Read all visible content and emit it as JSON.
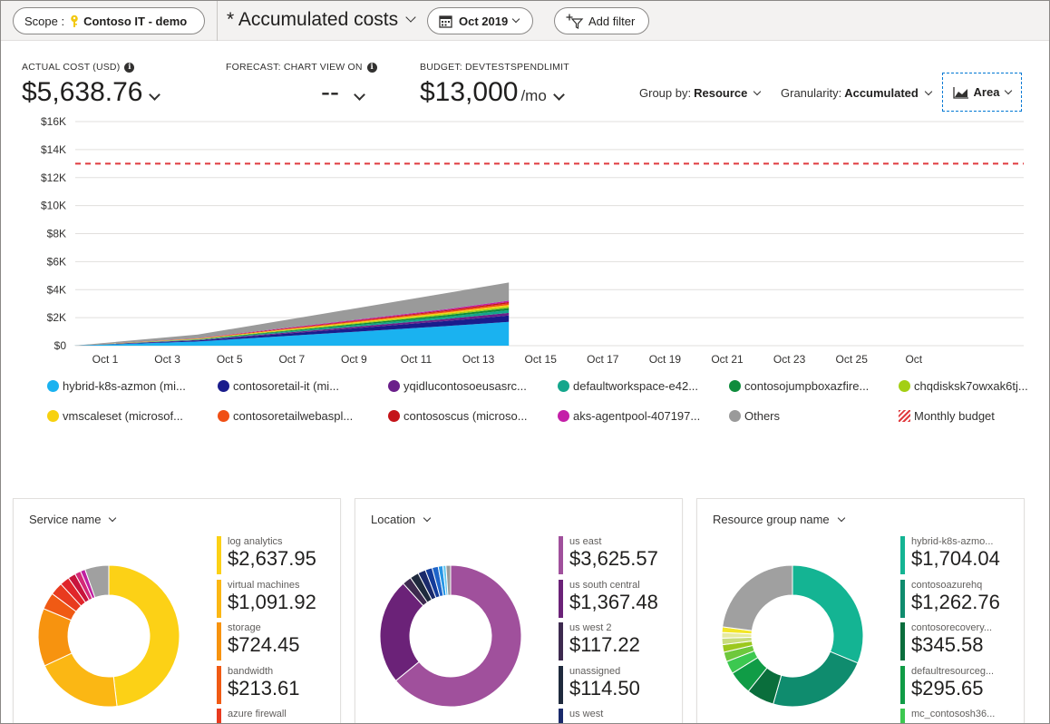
{
  "toolbar": {
    "scope_label": "Scope :",
    "scope_name": "Contoso IT - demo",
    "view_name": "* Accumulated costs",
    "date_range": "Oct 2019",
    "add_filter": "Add filter"
  },
  "kpis": {
    "actual": {
      "label": "ACTUAL COST (USD)",
      "value": "$5,638.76"
    },
    "forecast": {
      "label": "FORECAST: CHART VIEW ON",
      "value": "--"
    },
    "budget": {
      "label": "BUDGET: DEVTESTSPENDLIMIT",
      "value": "$13,000",
      "unit": "/mo"
    }
  },
  "controls": {
    "group_by_label": "Group by:",
    "group_by_value": "Resource",
    "granularity_label": "Granularity:",
    "granularity_value": "Accumulated",
    "chart_type": "Area",
    "icons": {
      "chart_type": "area-chart-icon",
      "scope": "key-icon",
      "date": "calendar-icon",
      "filter": "add-filter-icon"
    }
  },
  "chart_data": {
    "type": "area",
    "stacked": true,
    "y_ticks": [
      "$0",
      "$2K",
      "$4K",
      "$6K",
      "$8K",
      "$10K",
      "$12K",
      "$14K",
      "$16K"
    ],
    "x_ticks": [
      "Oct 1",
      "Oct 3",
      "Oct 5",
      "Oct 7",
      "Oct 9",
      "Oct 11",
      "Oct 13",
      "Oct 15",
      "Oct 17",
      "Oct 19",
      "Oct 21",
      "Oct 23",
      "Oct 25",
      "Oct"
    ],
    "ylim": [
      0,
      16000
    ],
    "x_days": [
      0,
      4,
      8,
      12,
      14
    ],
    "budget": 13000,
    "budget_color": "#e03a3e",
    "grid": true,
    "series": [
      {
        "name": "hybrid-k8s-azmon (mi...",
        "color": "#1ab2f0",
        "values": [
          0,
          300,
          850,
          1400,
          1700
        ]
      },
      {
        "name": "contosoretail-it (mi...",
        "color": "#1a1c8c",
        "values": [
          0,
          70,
          210,
          360,
          450
        ]
      },
      {
        "name": "yqidlucontosoeusasrc...",
        "color": "#6a1f8a",
        "values": [
          0,
          30,
          90,
          150,
          190
        ]
      },
      {
        "name": "defaultworkspace-e42...",
        "color": "#14a68c",
        "values": [
          0,
          30,
          90,
          150,
          190
        ]
      },
      {
        "name": "contosojumpboxazfire...",
        "color": "#0f8c3c",
        "values": [
          0,
          25,
          75,
          130,
          160
        ]
      },
      {
        "name": "chqdisksk7owxak6tj...",
        "color": "#a3cf14",
        "values": [
          0,
          18,
          55,
          90,
          110
        ]
      },
      {
        "name": "vmscaleset (microsof...",
        "color": "#f7d10f",
        "values": [
          0,
          18,
          55,
          90,
          110
        ]
      },
      {
        "name": "contosoretailwebaspl...",
        "color": "#f04f14",
        "values": [
          0,
          18,
          55,
          90,
          110
        ]
      },
      {
        "name": "contososcus (microso...",
        "color": "#c41419",
        "values": [
          0,
          15,
          45,
          75,
          95
        ]
      },
      {
        "name": "aks-agentpool-407197...",
        "color": "#c41fa8",
        "values": [
          0,
          15,
          45,
          75,
          95
        ]
      },
      {
        "name": "Others",
        "color": "#9a9a9a",
        "values": [
          0,
          250,
          700,
          1150,
          1300
        ]
      }
    ],
    "budget_legend": "Monthly budget"
  },
  "cards": [
    {
      "title": "Service name",
      "slices": [
        {
          "value": 2637.95,
          "color": "#fcd116"
        },
        {
          "value": 1091.92,
          "color": "#fbb714"
        },
        {
          "value": 724.45,
          "color": "#f7930f"
        },
        {
          "value": 213.61,
          "color": "#f05a14"
        },
        {
          "value": 160,
          "color": "#e83a1f"
        },
        {
          "value": 120,
          "color": "#e0252a"
        },
        {
          "value": 95,
          "color": "#c8143c"
        },
        {
          "value": 75,
          "color": "#d42877"
        },
        {
          "value": 60,
          "color": "#c01fa0"
        },
        {
          "value": 300,
          "color": "#a0a0a0"
        }
      ],
      "items": [
        {
          "label": "log analytics",
          "value": "$2,637.95",
          "color": "#fcd116"
        },
        {
          "label": "virtual machines",
          "value": "$1,091.92",
          "color": "#fbb714"
        },
        {
          "label": "storage",
          "value": "$724.45",
          "color": "#f7930f"
        },
        {
          "label": "bandwidth",
          "value": "$213.61",
          "color": "#f05a14"
        },
        {
          "label": "azure firewall",
          "value": "",
          "color": "#e83a1f"
        }
      ]
    },
    {
      "title": "Location",
      "slices": [
        {
          "value": 3625.57,
          "color": "#a0509c"
        },
        {
          "value": 1367.48,
          "color": "#6b2278"
        },
        {
          "value": 117.22,
          "color": "#3d2a4f"
        },
        {
          "value": 114.5,
          "color": "#1f2a3d"
        },
        {
          "value": 100,
          "color": "#1a2a6b"
        },
        {
          "value": 90,
          "color": "#143c9a"
        },
        {
          "value": 80,
          "color": "#1e64c8"
        },
        {
          "value": 60,
          "color": "#2896e6"
        },
        {
          "value": 40,
          "color": "#64c8f0"
        },
        {
          "value": 60,
          "color": "#9a9a9a"
        }
      ],
      "items": [
        {
          "label": "us east",
          "value": "$3,625.57",
          "color": "#a0509c"
        },
        {
          "label": "us south central",
          "value": "$1,367.48",
          "color": "#6b2278"
        },
        {
          "label": "us west 2",
          "value": "$117.22",
          "color": "#3d2a4f"
        },
        {
          "label": "unassigned",
          "value": "$114.50",
          "color": "#1f2a3d"
        },
        {
          "label": "us west",
          "value": "",
          "color": "#1a2a6b"
        }
      ]
    },
    {
      "title": "Resource group name",
      "slices": [
        {
          "value": 1704.04,
          "color": "#14b493"
        },
        {
          "value": 1262.76,
          "color": "#0f8c6e"
        },
        {
          "value": 345.58,
          "color": "#0a6e3c"
        },
        {
          "value": 295.65,
          "color": "#109c46"
        },
        {
          "value": 160,
          "color": "#3cc850"
        },
        {
          "value": 120,
          "color": "#6ec83c"
        },
        {
          "value": 95,
          "color": "#9cc81e"
        },
        {
          "value": 80,
          "color": "#c8dc7d"
        },
        {
          "value": 70,
          "color": "#e6eaa0"
        },
        {
          "value": 70,
          "color": "#f2e628"
        },
        {
          "value": 1250,
          "color": "#a0a0a0"
        }
      ],
      "items": [
        {
          "label": "hybrid-k8s-azmo...",
          "value": "$1,704.04",
          "color": "#14b493"
        },
        {
          "label": "contosoazurehq",
          "value": "$1,262.76",
          "color": "#0f8c6e"
        },
        {
          "label": "contosorecovery...",
          "value": "$345.58",
          "color": "#0a6e3c"
        },
        {
          "label": "defaultresourceg...",
          "value": "$295.65",
          "color": "#109c46"
        },
        {
          "label": "mc_contososh36...",
          "value": "",
          "color": "#3cc850"
        }
      ]
    }
  ]
}
